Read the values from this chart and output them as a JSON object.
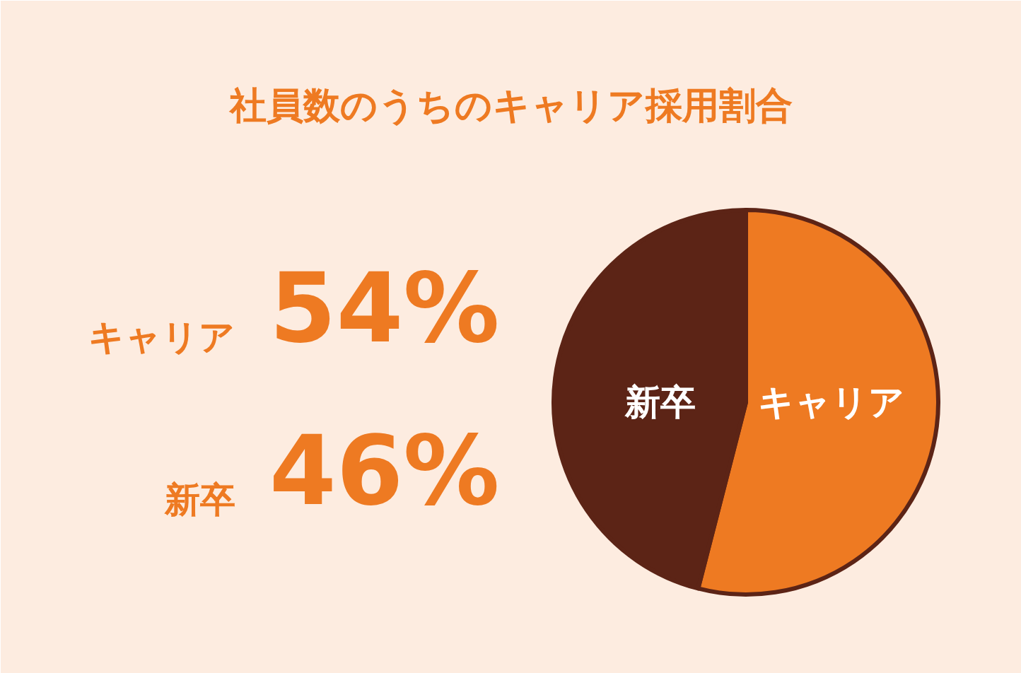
{
  "chart_data": {
    "type": "pie",
    "title": "社員数のうちのキャリア採用割合",
    "categories": [
      "キャリア",
      "新卒"
    ],
    "values": [
      54,
      46
    ],
    "colors": [
      "#ee7a22",
      "#5c2416"
    ],
    "annotations": [
      "キャリア",
      "54%",
      "新卒",
      "46%"
    ]
  }
}
